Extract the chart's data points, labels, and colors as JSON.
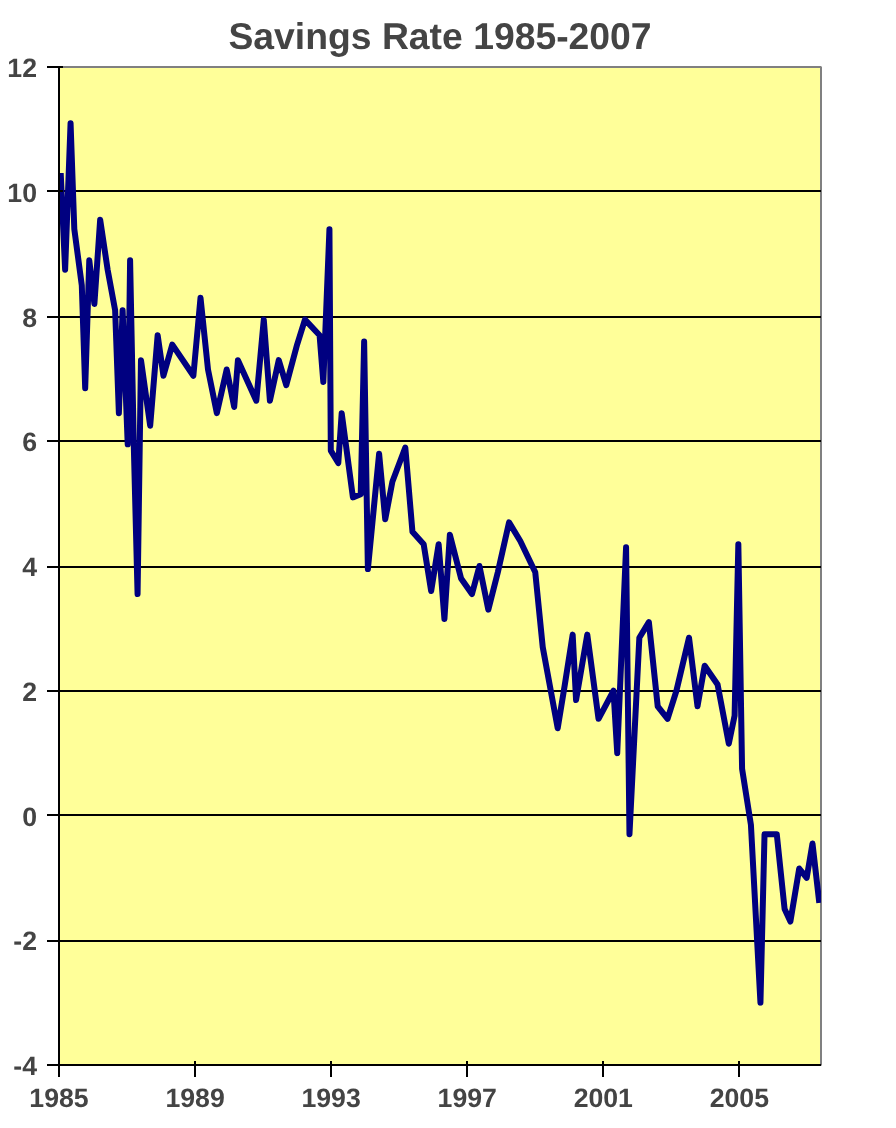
{
  "chart_data": {
    "type": "line",
    "title": "Savings Rate 1985-2007",
    "x": [
      1985.05,
      1985.18,
      1985.34,
      1985.45,
      1985.67,
      1985.77,
      1985.89,
      1986.04,
      1986.21,
      1986.43,
      1986.65,
      1986.76,
      1986.87,
      1987.02,
      1987.09,
      1987.2,
      1987.31,
      1987.41,
      1987.68,
      1987.9,
      1988.07,
      1988.33,
      1988.95,
      1989.16,
      1989.38,
      1989.64,
      1989.93,
      1990.15,
      1990.26,
      1990.8,
      1991.02,
      1991.2,
      1991.46,
      1991.68,
      1992.0,
      1992.23,
      1992.66,
      1992.77,
      1992.95,
      1992.99,
      1993.21,
      1993.31,
      1993.64,
      1993.87,
      1993.97,
      1994.08,
      1994.41,
      1994.59,
      1994.8,
      1995.18,
      1995.39,
      1995.72,
      1995.94,
      1996.16,
      1996.33,
      1996.49,
      1996.82,
      1997.14,
      1997.36,
      1997.62,
      1997.9,
      1998.23,
      1998.56,
      1999.0,
      1999.22,
      1999.66,
      1999.87,
      2000.1,
      2000.2,
      2000.53,
      2000.86,
      2001.3,
      2001.41,
      2001.67,
      2001.77,
      2002.06,
      2002.34,
      2002.6,
      2002.89,
      2003.15,
      2003.52,
      2003.77,
      2003.98,
      2004.36,
      2004.69,
      2004.86,
      2004.97,
      2005.08,
      2005.34,
      2005.62,
      2005.74,
      2006.1,
      2006.33,
      2006.5,
      2006.76,
      2006.98,
      2007.15,
      2007.35
    ],
    "series": [
      {
        "color": "#000080",
        "values": [
          10.3,
          8.75,
          11.1,
          9.4,
          8.5,
          6.85,
          8.9,
          8.2,
          9.55,
          8.75,
          8.1,
          6.45,
          8.1,
          5.95,
          8.9,
          5.9,
          3.55,
          7.3,
          6.25,
          7.7,
          7.05,
          7.55,
          7.05,
          8.3,
          7.15,
          6.45,
          7.15,
          6.55,
          7.3,
          6.65,
          7.95,
          6.65,
          7.3,
          6.9,
          7.55,
          7.95,
          7.7,
          6.95,
          9.4,
          5.85,
          5.65,
          6.45,
          5.1,
          5.15,
          7.6,
          3.95,
          5.8,
          4.75,
          5.35,
          5.9,
          4.55,
          4.35,
          3.6,
          4.35,
          3.15,
          4.5,
          3.8,
          3.55,
          4.0,
          3.3,
          3.9,
          4.7,
          4.4,
          3.9,
          2.7,
          1.4,
          2.1,
          2.9,
          1.85,
          2.9,
          1.55,
          2.0,
          1.0,
          4.3,
          -0.3,
          2.85,
          3.1,
          1.75,
          1.55,
          2.0,
          2.85,
          1.75,
          2.4,
          2.1,
          1.15,
          1.6,
          4.35,
          0.75,
          -0.15,
          -3.0,
          -0.3,
          -0.3,
          -1.5,
          -1.7,
          -0.85,
          -1.0,
          -0.45,
          -1.4
        ]
      }
    ],
    "xlim": [
      1985,
      2007.4
    ],
    "xticks": [
      1985,
      1989,
      1993,
      1997,
      2001,
      2005
    ],
    "ylim": [
      -4,
      12
    ],
    "yticks": [
      -4,
      -2,
      0,
      2,
      4,
      6,
      8,
      10,
      12
    ],
    "grid": "y"
  }
}
